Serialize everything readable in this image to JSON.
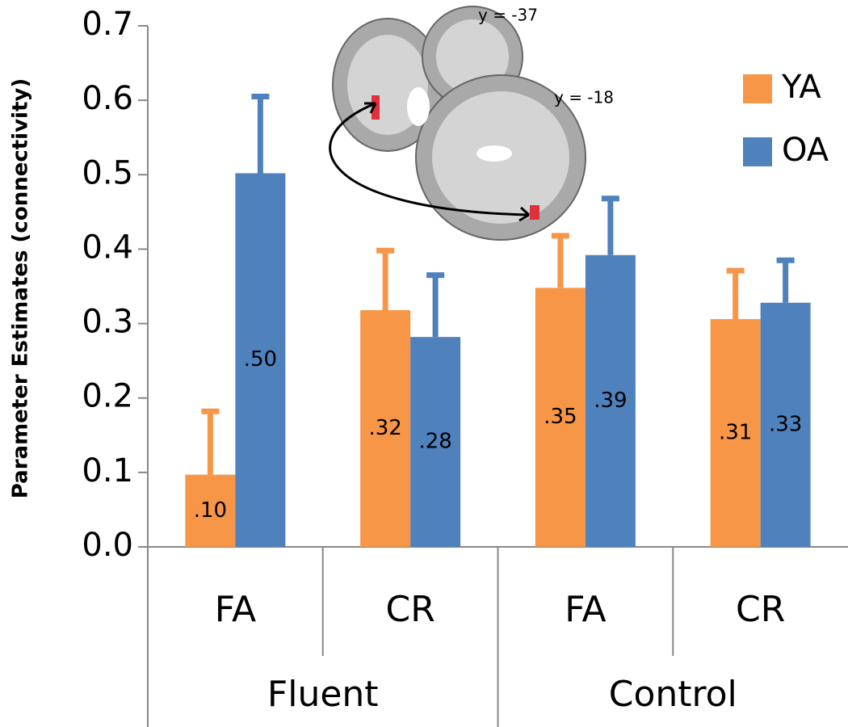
{
  "chart_data": {
    "type": "bar",
    "y_label": "Parameter Estimates (connectivity)",
    "categories": [
      "FA",
      "CR",
      "FA",
      "CR"
    ],
    "groups": [
      {
        "name": "Fluent",
        "span": [
          0,
          1
        ]
      },
      {
        "name": "Control",
        "span": [
          2,
          3
        ]
      }
    ],
    "series": [
      {
        "name": "YA",
        "color": "#f79646",
        "values": [
          0.097,
          0.318,
          0.348,
          0.306
        ],
        "errors": [
          0.085,
          0.08,
          0.07,
          0.065
        ],
        "value_labels": [
          ".10",
          ".32",
          ".35",
          ".31"
        ]
      },
      {
        "name": "OA",
        "color": "#4f81bd",
        "values": [
          0.502,
          0.282,
          0.392,
          0.328
        ],
        "errors": [
          0.103,
          0.083,
          0.076,
          0.057
        ],
        "value_labels": [
          ".50",
          ".28",
          ".39",
          ".33"
        ]
      }
    ],
    "ylim": [
      0,
      0.7
    ],
    "yticks": [
      {
        "value": 0,
        "label": "0.0"
      },
      0.1,
      0.2,
      0.3,
      0.4,
      0.5,
      0.6,
      0.7
    ],
    "legend": "top-right",
    "annotations": [
      "y = -37",
      "y = -18"
    ]
  }
}
